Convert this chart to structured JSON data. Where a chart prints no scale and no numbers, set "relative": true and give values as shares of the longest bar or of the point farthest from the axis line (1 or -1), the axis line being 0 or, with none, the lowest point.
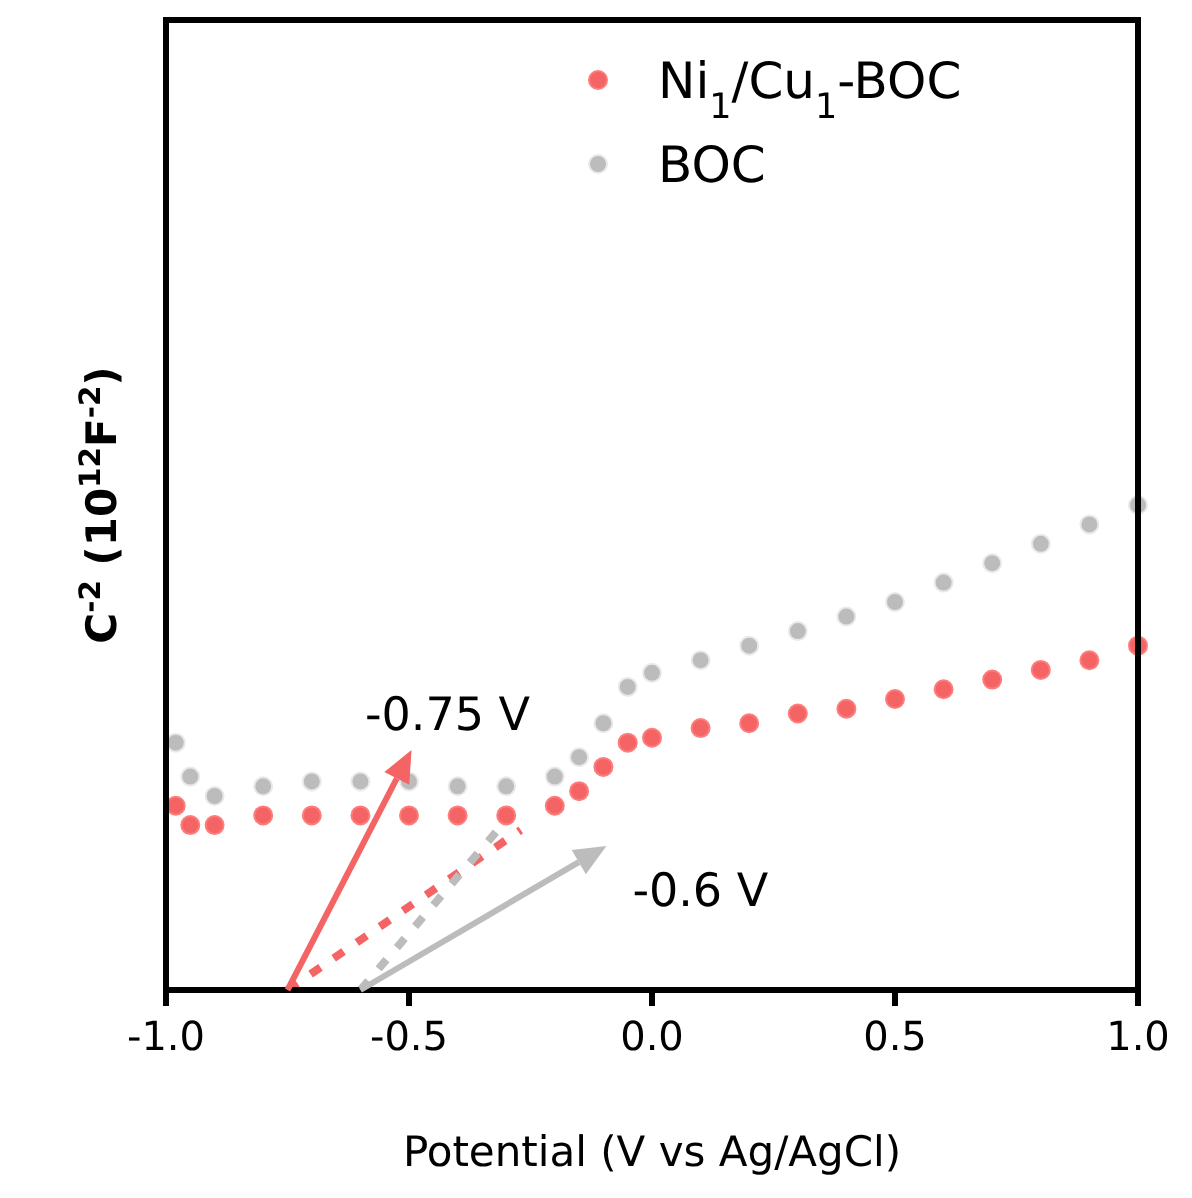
{
  "chart_data": {
    "type": "scatter",
    "relative": true,
    "xlabel": "Potential (V vs Ag/AgCl)",
    "ylabel": "C$^{-2}$ (10$^{12}$F$^{-2}$)",
    "xlim": [
      -1.0,
      1.0
    ],
    "xticks": [
      {
        "value": -1,
        "label": "-1.0"
      },
      {
        "value": -0.5,
        "label": "-0.5"
      },
      {
        "value": 0,
        "label": "0.0"
      },
      {
        "value": 0.5,
        "label": "0.5"
      },
      {
        "value": 1,
        "label": "1.0"
      }
    ],
    "legend": "top right",
    "series": [
      {
        "name": "Ni$_{1}$/Cu$_{1}$-BOC",
        "marker": "circle",
        "color": "#f46464",
        "x": [
          -0.98,
          -0.95,
          -0.9,
          -0.8,
          -0.7,
          -0.6,
          -0.5,
          -0.4,
          -0.3,
          -0.2,
          -0.15,
          -0.1,
          -0.05,
          0.0,
          0.1,
          0.2,
          0.3,
          0.4,
          0.5,
          0.6,
          0.7,
          0.8,
          0.9,
          1.0
        ],
        "values": [
          0.38,
          0.34,
          0.34,
          0.36,
          0.36,
          0.36,
          0.36,
          0.36,
          0.36,
          0.38,
          0.41,
          0.46,
          0.51,
          0.52,
          0.54,
          0.55,
          0.57,
          0.58,
          0.6,
          0.62,
          0.64,
          0.66,
          0.68,
          0.71
        ]
      },
      {
        "name": "BOC",
        "marker": "circle",
        "color": "#bcbcbc",
        "x": [
          -0.98,
          -0.95,
          -0.9,
          -0.8,
          -0.7,
          -0.6,
          -0.5,
          -0.4,
          -0.3,
          -0.2,
          -0.15,
          -0.1,
          -0.05,
          0.0,
          0.1,
          0.2,
          0.3,
          0.4,
          0.5,
          0.6,
          0.7,
          0.8,
          0.9,
          1.0
        ],
        "values": [
          0.51,
          0.44,
          0.4,
          0.42,
          0.43,
          0.43,
          0.43,
          0.42,
          0.42,
          0.44,
          0.48,
          0.55,
          0.625,
          0.654,
          0.68,
          0.71,
          0.74,
          0.77,
          0.8,
          0.84,
          0.88,
          0.92,
          0.96,
          1.0
        ]
      },
      {
        "type": "line",
        "line_style": "dotted",
        "color": "#f46464",
        "x": [
          -0.75,
          -0.27
        ],
        "values": [
          0,
          0.33
        ]
      },
      {
        "type": "line",
        "line_style": "dotted",
        "color": "#bcbcbc",
        "x": [
          -0.6,
          -0.3
        ],
        "values": [
          0,
          0.35
        ]
      }
    ],
    "annotations": [
      {
        "text": "-0.75 V",
        "x": -0.75,
        "y": 0
      },
      {
        "text": "-0.6 V",
        "x": -0.6,
        "y": 0
      }
    ]
  }
}
